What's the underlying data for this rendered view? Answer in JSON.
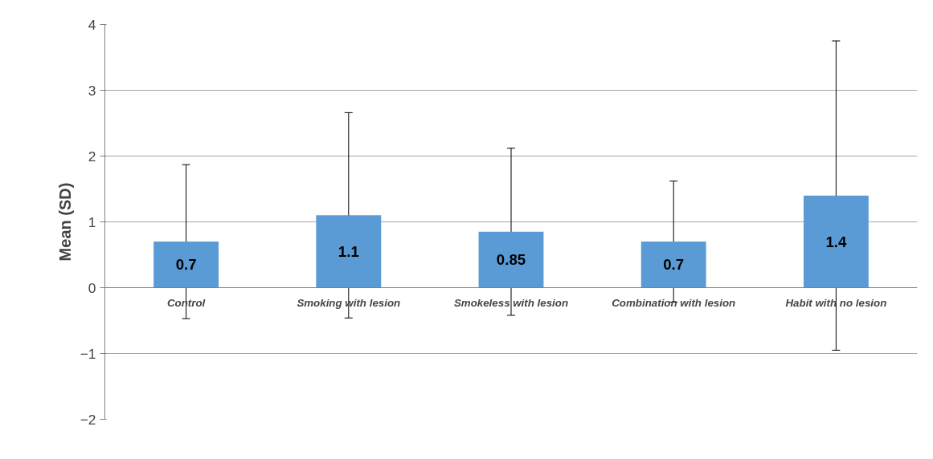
{
  "chart_data": {
    "type": "bar",
    "ylabel": "Mean (SD)",
    "categories": [
      "Control",
      "Smoking with lesion",
      "Smokeless with lesion",
      "Combination with lesion",
      "Habit with no lesion"
    ],
    "values": [
      0.7,
      1.1,
      0.85,
      0.7,
      1.4
    ],
    "errors": [
      1.17,
      1.56,
      1.27,
      0.92,
      2.35
    ],
    "color": "#5b9bd5",
    "data_labels": true,
    "ylim": [
      -2,
      4
    ],
    "yticks": [
      -2,
      -1,
      0,
      1,
      2,
      3,
      4
    ],
    "grid": "y"
  }
}
